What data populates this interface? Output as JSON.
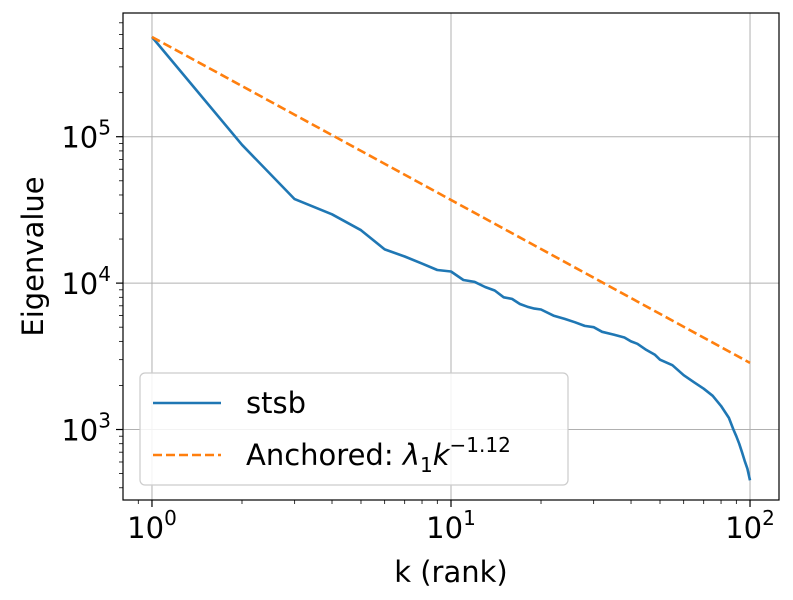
{
  "chart_data": {
    "type": "line",
    "title": "",
    "xlabel": "k (rank)",
    "ylabel": "Eigenvalue",
    "xscale": "log",
    "yscale": "log",
    "xlim": [
      0.8,
      125
    ],
    "ylim": [
      330,
      700000
    ],
    "grid": true,
    "legend_position": "lower-left",
    "x_ticks": [
      {
        "value": 1,
        "base": "10",
        "exp": "0"
      },
      {
        "value": 10,
        "base": "10",
        "exp": "1"
      },
      {
        "value": 100,
        "base": "10",
        "exp": "2"
      }
    ],
    "y_ticks": [
      {
        "value": 1000,
        "base": "10",
        "exp": "3"
      },
      {
        "value": 10000,
        "base": "10",
        "exp": "4"
      },
      {
        "value": 100000,
        "base": "10",
        "exp": "5"
      }
    ],
    "series": [
      {
        "name": "stsb",
        "color": "#1f77b4",
        "style": "solid",
        "x": [
          1,
          2,
          3,
          4,
          5,
          6,
          7,
          8,
          9,
          10,
          11,
          12,
          13,
          14,
          15,
          16,
          17,
          18,
          19,
          20,
          22,
          24,
          26,
          28,
          30,
          32,
          35,
          38,
          40,
          42,
          45,
          48,
          50,
          55,
          60,
          65,
          70,
          75,
          80,
          85,
          88,
          90,
          92,
          94,
          96,
          98,
          100
        ],
        "y": [
          480000,
          88000,
          37500,
          29500,
          23000,
          17000,
          15200,
          13600,
          12300,
          12000,
          10500,
          10200,
          9400,
          8900,
          8000,
          7800,
          7200,
          6900,
          6700,
          6600,
          6000,
          5700,
          5400,
          5100,
          5000,
          4650,
          4450,
          4250,
          4000,
          3850,
          3500,
          3250,
          3000,
          2750,
          2350,
          2100,
          1900,
          1700,
          1450,
          1200,
          1000,
          900,
          800,
          700,
          610,
          540,
          450
        ]
      },
      {
        "name_parts": [
          "Anchored: ",
          "λ",
          "1",
          "k",
          "−1.12"
        ],
        "color": "#ff7f0e",
        "style": "dashed",
        "x": [
          1,
          100
        ],
        "y": [
          480000,
          2850
        ]
      }
    ]
  }
}
